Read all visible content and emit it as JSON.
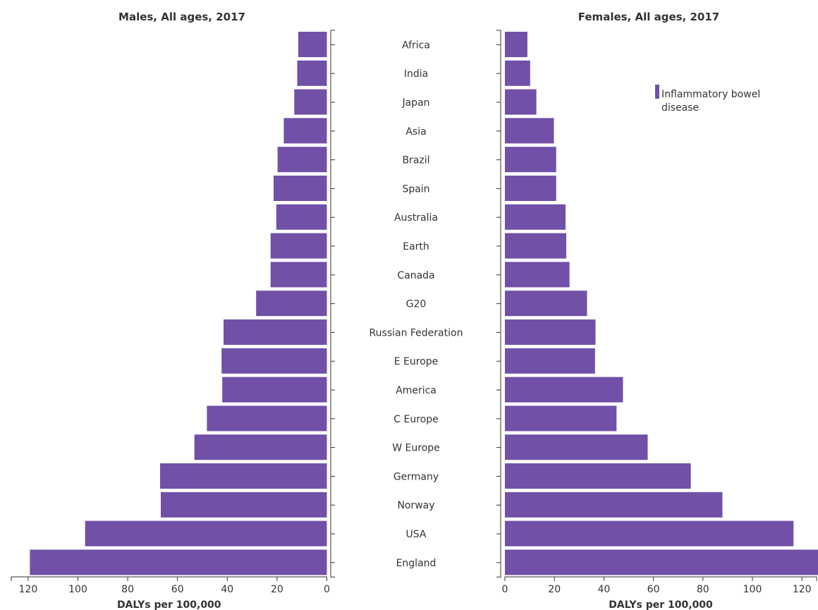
{
  "colors": {
    "bar": "#7150a8",
    "axis": "#333333",
    "text": "#333333"
  },
  "chart_data": {
    "type": "bar",
    "orientation": "horizontal",
    "layout": "population-pyramid",
    "categories": [
      "Africa",
      "India",
      "Japan",
      "Asia",
      "Brazil",
      "Spain",
      "Australia",
      "Earth",
      "Canada",
      "G20",
      "Russian Federation",
      "E Europe",
      "America",
      "C Europe",
      "W Europe",
      "Germany",
      "Norway",
      "USA",
      "England"
    ],
    "legend": {
      "label_line1": "Inflammatory bowel",
      "label_line2": "disease"
    },
    "panels": [
      {
        "id": "males",
        "title": "Males, All ages, 2017",
        "xlabel": "DALYs per 100,000",
        "xlim": [
          0,
          127
        ],
        "reversed": true,
        "ticks": [
          0,
          20,
          40,
          60,
          80,
          100,
          120
        ],
        "series": [
          {
            "values": [
              11.5,
              11.9,
              13.1,
              17.3,
              19.8,
              21.4,
              20.3,
              22.6,
              22.6,
              28.4,
              41.5,
              42.3,
              42.0,
              48.2,
              53.2,
              67.0,
              66.7,
              97.1,
              119.3
            ]
          }
        ]
      },
      {
        "id": "females",
        "title": "Females, All ages, 2017",
        "xlabel": "DALYs per 100,000",
        "xlim": [
          0,
          127
        ],
        "reversed": false,
        "ticks": [
          0,
          20,
          40,
          60,
          80,
          100,
          120
        ],
        "series": [
          {
            "values": [
              9.1,
              10.2,
              12.7,
              19.8,
              20.7,
              20.7,
              24.5,
              24.8,
              26.1,
              33.2,
              36.6,
              36.4,
              47.7,
              45.1,
              57.7,
              75.1,
              87.9,
              116.6,
              127.0
            ]
          }
        ]
      }
    ]
  }
}
